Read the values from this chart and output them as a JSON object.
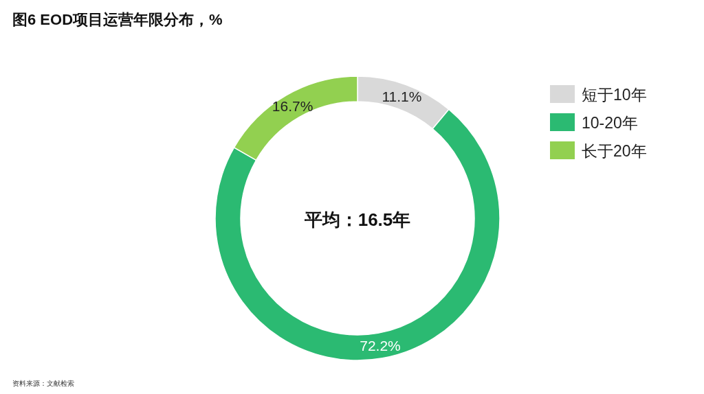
{
  "chart_data": {
    "type": "donut",
    "title": "图6  EOD项目运营年限分布，%",
    "categories": [
      "短于10年",
      "10-20年",
      "长于20年"
    ],
    "values": [
      11.1,
      72.2,
      16.7
    ],
    "colors": [
      "#d9d9d9",
      "#2bba72",
      "#92d050"
    ],
    "value_labels": [
      "11.1%",
      "72.2%",
      "16.7%"
    ],
    "legend": "right",
    "annotations": [
      "平均：16.5年",
      "资料来源：文献检索"
    ]
  }
}
